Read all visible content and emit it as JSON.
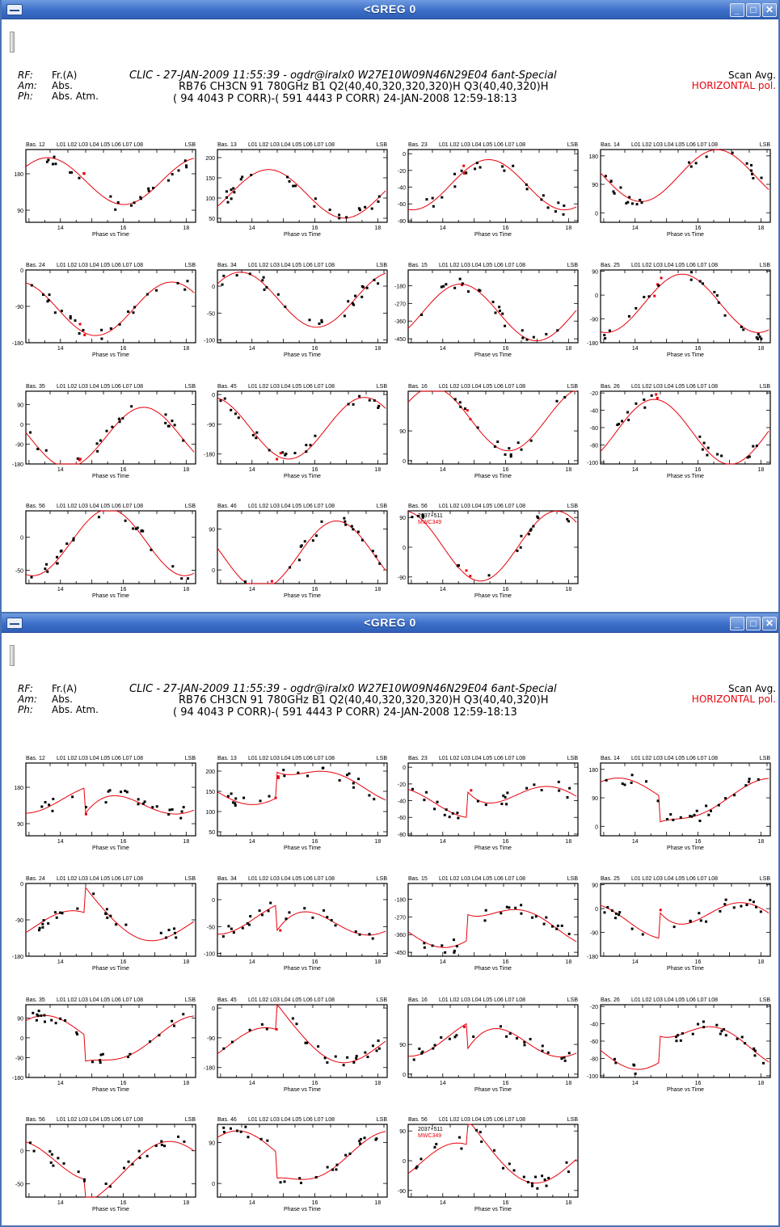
{
  "windows": [
    {
      "title": "<GREG  0",
      "top": 0
    },
    {
      "title": "<GREG  0",
      "top": 759
    }
  ],
  "header": {
    "rf_label": "RF:",
    "rf_value": "Fr.(A)",
    "am_label": "Am:",
    "am_value": "Abs.",
    "ph_label": "Ph:",
    "ph_value": "Abs. Atm.",
    "line1": "CLIC - 27-JAN-2009 11:55:39 - ogdr@iralx0   W27E10W09N46N29E04 6ant-Special",
    "line2": "RB76 CH3CN 91 780GHz B1 Q2(40,40,320,320,320)H Q3(40,40,320)H",
    "line3": "( 94 4043 P CORR)-( 591 4443 P CORR) 24-JAN-2008 12:59-18:13",
    "scan_avg": "Scan Avg.",
    "pol": "HORIZONTAL pol."
  },
  "panel_xlabel": "Phase  vs  Time",
  "panel_lsb": "LSB",
  "panel_sessions": "L01 L02 L03 L04 L05 L06 L07 L08",
  "x_ticks": [
    "14",
    "16",
    "18"
  ],
  "legend": [
    "2037+511",
    "MWC349"
  ],
  "colors": {
    "fit": "#e8000b",
    "data_black": "#000000",
    "data_red": "#e8000b"
  },
  "chart_data": [
    {
      "type": "scatter",
      "base": "Bas. 12",
      "yticks": [
        "180",
        "90"
      ],
      "ylim": [
        60,
        240
      ]
    },
    {
      "type": "scatter",
      "base": "Bas. 13",
      "yticks": [
        "200",
        "150",
        "100",
        "50"
      ],
      "ylim": [
        40,
        220
      ]
    },
    {
      "type": "scatter",
      "base": "Bas. 23",
      "yticks": [
        "0",
        "-20",
        "-40",
        "-60",
        "-80"
      ],
      "ylim": [
        -82,
        5
      ]
    },
    {
      "type": "scatter",
      "base": "Bas. 14",
      "yticks": [
        "180",
        "90",
        "0"
      ],
      "ylim": [
        -30,
        200
      ]
    },
    {
      "type": "scatter",
      "base": "Bas. 24",
      "yticks": [
        "0",
        "-90",
        "-180"
      ],
      "ylim": [
        -180,
        0
      ]
    },
    {
      "type": "scatter",
      "base": "Bas. 34",
      "yticks": [
        "0",
        "-50",
        "-100"
      ],
      "ylim": [
        -105,
        30
      ]
    },
    {
      "type": "scatter",
      "base": "Bas. 15",
      "yticks": [
        "-180",
        "-270",
        "-360",
        "-450"
      ],
      "ylim": [
        -470,
        -100
      ]
    },
    {
      "type": "scatter",
      "base": "Bas. 25",
      "yticks": [
        "90",
        "0",
        "-90",
        "-180"
      ],
      "ylim": [
        -180,
        95
      ]
    },
    {
      "type": "scatter",
      "base": "Bas. 35",
      "yticks": [
        "90",
        "0",
        "-90",
        "-180"
      ],
      "ylim": [
        -180,
        150
      ]
    },
    {
      "type": "scatter",
      "base": "Bas. 45",
      "yticks": [
        "0",
        "-90",
        "-180"
      ],
      "ylim": [
        -210,
        10
      ]
    },
    {
      "type": "scatter",
      "base": "Bas. 16",
      "yticks": [
        "90",
        "0"
      ],
      "ylim": [
        -10,
        210
      ]
    },
    {
      "type": "scatter",
      "base": "Bas. 26",
      "yticks": [
        "-20",
        "-40",
        "-60",
        "-80",
        "-100"
      ],
      "ylim": [
        -102,
        -18
      ]
    },
    {
      "type": "scatter",
      "base": "Bas. 56",
      "yticks": [
        "0",
        "-50"
      ],
      "ylim": [
        -70,
        40
      ]
    },
    {
      "type": "scatter",
      "base": "Bas. 46",
      "yticks": [
        "90",
        "0"
      ],
      "ylim": [
        -30,
        130
      ]
    },
    {
      "type": "scatter",
      "base": "Bas. 56",
      "yticks": [
        "90",
        "0",
        "-90"
      ],
      "ylim": [
        -110,
        110
      ]
    }
  ]
}
